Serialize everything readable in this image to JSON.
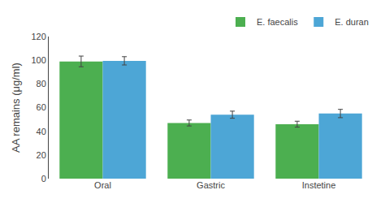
{
  "chart_data": {
    "type": "bar",
    "categories": [
      "Oral",
      "Gastric",
      "Instetine"
    ],
    "series": [
      {
        "name": "E. faecalis",
        "color": "#4caf50",
        "values": [
          99.0,
          47.0,
          46.0
        ],
        "errors": [
          4.5,
          2.5,
          2.5
        ]
      },
      {
        "name": "E. duran",
        "color": "#4da6d6",
        "values": [
          99.5,
          54.0,
          55.0
        ],
        "errors": [
          3.5,
          3.0,
          3.5
        ]
      }
    ],
    "ylabel": "AA remains (μg/ml)",
    "ylim": [
      0,
      120
    ],
    "yticks": [
      0,
      20,
      40,
      60,
      80,
      100,
      120
    ],
    "legend": "upper right",
    "grid": false
  }
}
